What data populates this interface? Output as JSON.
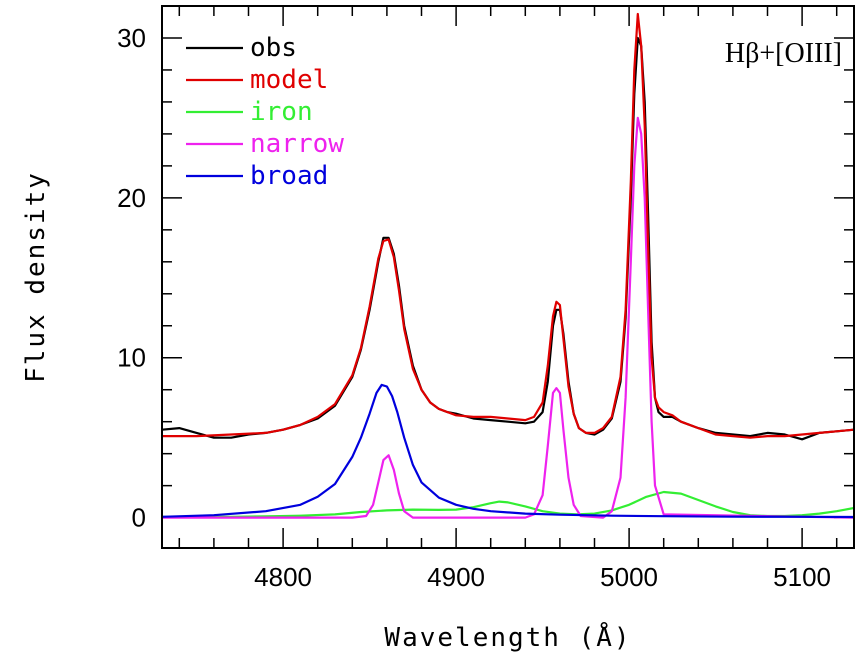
{
  "chart_data": {
    "type": "line",
    "title": "",
    "annotation": "Hβ+[OIII]",
    "xlabel": "Wavelength (Å)",
    "ylabel": "Flux density",
    "xlim": [
      4730,
      5130
    ],
    "ylim": [
      -1.9,
      32
    ],
    "x_ticks": [
      4800,
      4900,
      5000,
      5100
    ],
    "x_tick_labels": [
      "4800",
      "4900",
      "5000",
      "5100"
    ],
    "y_ticks": [
      0,
      10,
      20,
      30
    ],
    "y_tick_labels": [
      "0",
      "10",
      "20",
      "30"
    ],
    "x_minor_step": 20,
    "y_minor_step": 2,
    "legend_position": "top-left",
    "series": [
      {
        "name": "obs",
        "color": "#000000",
        "x": [
          4730,
          4740,
          4750,
          4760,
          4770,
          4780,
          4790,
          4800,
          4810,
          4820,
          4830,
          4840,
          4845,
          4850,
          4855,
          4858,
          4861,
          4864,
          4867,
          4870,
          4875,
          4880,
          4885,
          4890,
          4895,
          4900,
          4910,
          4920,
          4930,
          4940,
          4945,
          4950,
          4953,
          4956,
          4958,
          4960,
          4962,
          4965,
          4968,
          4971,
          4975,
          4980,
          4985,
          4990,
          4995,
          4998,
          5001,
          5003,
          5005,
          5007,
          5009,
          5011,
          5013,
          5015,
          5017,
          5020,
          5025,
          5030,
          5040,
          5050,
          5060,
          5070,
          5080,
          5090,
          5100,
          5110,
          5120,
          5130
        ],
        "y": [
          5.5,
          5.6,
          5.3,
          5.0,
          5.0,
          5.2,
          5.3,
          5.5,
          5.8,
          6.2,
          7.0,
          8.8,
          10.5,
          13.0,
          16.0,
          17.5,
          17.5,
          16.5,
          14.5,
          12.0,
          9.5,
          8.0,
          7.2,
          6.8,
          6.6,
          6.5,
          6.2,
          6.1,
          6.0,
          5.9,
          6.0,
          6.6,
          8.5,
          12.0,
          13.0,
          13.0,
          11.5,
          8.5,
          6.5,
          5.6,
          5.3,
          5.2,
          5.5,
          6.2,
          8.5,
          12.5,
          20.0,
          26.5,
          30.0,
          29.5,
          26.0,
          19.0,
          11.0,
          7.5,
          6.6,
          6.3,
          6.3,
          6.0,
          5.6,
          5.3,
          5.2,
          5.1,
          5.3,
          5.2,
          4.9,
          5.3,
          5.4,
          5.5
        ]
      },
      {
        "name": "model",
        "color": "#e00000",
        "x": [
          4730,
          4750,
          4770,
          4790,
          4800,
          4810,
          4820,
          4830,
          4840,
          4845,
          4850,
          4855,
          4858,
          4861,
          4864,
          4867,
          4870,
          4875,
          4880,
          4885,
          4890,
          4900,
          4910,
          4920,
          4930,
          4940,
          4945,
          4950,
          4953,
          4956,
          4958,
          4960,
          4962,
          4965,
          4968,
          4971,
          4975,
          4980,
          4985,
          4990,
          4995,
          4998,
          5001,
          5003,
          5005,
          5007,
          5009,
          5011,
          5013,
          5015,
          5017,
          5020,
          5025,
          5030,
          5040,
          5050,
          5060,
          5070,
          5080,
          5090,
          5100,
          5110,
          5120,
          5130
        ],
        "y": [
          5.1,
          5.1,
          5.2,
          5.3,
          5.5,
          5.8,
          6.3,
          7.1,
          8.9,
          10.6,
          13.2,
          16.2,
          17.3,
          17.4,
          16.3,
          14.2,
          11.8,
          9.3,
          8.0,
          7.2,
          6.8,
          6.4,
          6.3,
          6.3,
          6.2,
          6.1,
          6.3,
          7.2,
          9.5,
          12.6,
          13.5,
          13.3,
          11.2,
          8.2,
          6.5,
          5.6,
          5.3,
          5.3,
          5.6,
          6.3,
          8.8,
          13.0,
          21.0,
          28.0,
          31.5,
          29.5,
          24.5,
          17.0,
          10.0,
          7.5,
          6.9,
          6.6,
          6.4,
          6.0,
          5.6,
          5.2,
          5.1,
          5.0,
          5.1,
          5.1,
          5.2,
          5.3,
          5.4,
          5.5
        ]
      },
      {
        "name": "iron",
        "color": "#33ee33",
        "x": [
          4730,
          4750,
          4770,
          4790,
          4810,
          4830,
          4845,
          4860,
          4875,
          4890,
          4900,
          4910,
          4920,
          4925,
          4930,
          4940,
          4950,
          4960,
          4970,
          4980,
          4990,
          5000,
          5010,
          5020,
          5030,
          5040,
          5050,
          5060,
          5070,
          5080,
          5090,
          5100,
          5110,
          5120,
          5130
        ],
        "y": [
          0.05,
          0.05,
          0.05,
          0.08,
          0.12,
          0.2,
          0.35,
          0.45,
          0.5,
          0.48,
          0.5,
          0.65,
          0.9,
          1.0,
          0.95,
          0.7,
          0.4,
          0.25,
          0.2,
          0.25,
          0.45,
          0.8,
          1.3,
          1.6,
          1.5,
          1.1,
          0.7,
          0.35,
          0.15,
          0.1,
          0.1,
          0.15,
          0.25,
          0.4,
          0.6
        ]
      },
      {
        "name": "narrow",
        "color": "#ee22ee",
        "x": [
          4730,
          4840,
          4848,
          4852,
          4855,
          4858,
          4861,
          4864,
          4867,
          4870,
          4875,
          4940,
          4945,
          4950,
          4953,
          4956,
          4958,
          4960,
          4962,
          4965,
          4968,
          4972,
          4985,
          4990,
          4995,
          4998,
          5001,
          5003,
          5005,
          5007,
          5009,
          5011,
          5013,
          5015,
          5020,
          5130
        ],
        "y": [
          0,
          0,
          0.1,
          0.8,
          2.2,
          3.6,
          3.9,
          3.0,
          1.5,
          0.4,
          0,
          0,
          0.2,
          1.4,
          4.5,
          7.8,
          8.1,
          7.8,
          5.5,
          2.5,
          0.8,
          0.1,
          0,
          0.4,
          2.5,
          7.5,
          16,
          22,
          25,
          24,
          20,
          13,
          6,
          2,
          0.2,
          0
        ]
      },
      {
        "name": "broad",
        "color": "#0000dd",
        "x": [
          4730,
          4760,
          4790,
          4810,
          4820,
          4830,
          4840,
          4845,
          4850,
          4854,
          4857,
          4860,
          4863,
          4866,
          4870,
          4875,
          4880,
          4890,
          4900,
          4910,
          4920,
          4940,
          4960,
          4990,
          5020,
          5060,
          5100,
          5130
        ],
        "y": [
          0.05,
          0.15,
          0.4,
          0.8,
          1.3,
          2.1,
          3.8,
          5.0,
          6.5,
          7.8,
          8.3,
          8.2,
          7.6,
          6.6,
          5.0,
          3.3,
          2.2,
          1.25,
          0.8,
          0.55,
          0.4,
          0.25,
          0.18,
          0.12,
          0.09,
          0.06,
          0.05,
          0.04
        ]
      }
    ]
  }
}
